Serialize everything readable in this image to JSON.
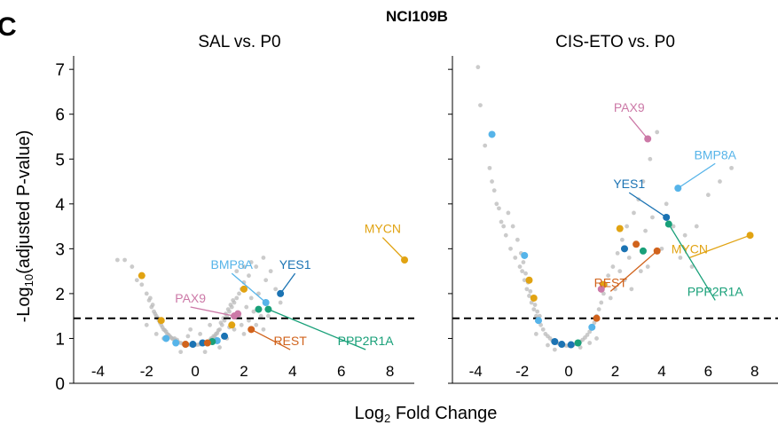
{
  "panel_letter": "C",
  "figure_title": "NCI109B",
  "y_axis_label": {
    "prefix": "-Log",
    "sub": "10",
    "suffix": "(adjusted P-value)"
  },
  "x_axis_label": {
    "prefix": "Log",
    "sub": "2",
    "suffix": " Fold Change"
  },
  "colors": {
    "grey": "#b9b9b9",
    "yellow": "#e1a312",
    "blue": "#1b73b3",
    "lightblue": "#56b4e9",
    "green": "#19a079",
    "orange": "#d1631c",
    "pink": "#cc79a7"
  },
  "chart_data": [
    {
      "type": "scatter",
      "title": "SAL vs. P0",
      "xlim": [
        -5,
        9
      ],
      "ylim": [
        0,
        7.3
      ],
      "x_ticks": [
        -4,
        -2,
        0,
        2,
        4,
        6,
        8
      ],
      "y_ticks": [
        0,
        1,
        2,
        3,
        4,
        5,
        6,
        7
      ],
      "y_tick_labels_shown": true,
      "threshold_y": 1.45,
      "background_points": [
        [
          -3.2,
          2.75
        ],
        [
          -2.9,
          2.75
        ],
        [
          -2.6,
          2.6
        ],
        [
          -2.4,
          2.3
        ],
        [
          -2.2,
          2.2
        ],
        [
          -2.0,
          2.0
        ],
        [
          -1.9,
          1.85
        ],
        [
          -1.8,
          1.7
        ],
        [
          -1.7,
          1.6
        ],
        [
          -1.6,
          1.5
        ],
        [
          -1.5,
          1.4
        ],
        [
          -1.4,
          1.3
        ],
        [
          -1.3,
          1.2
        ],
        [
          -1.2,
          1.15
        ],
        [
          -1.1,
          1.08
        ],
        [
          -1.0,
          1.02
        ],
        [
          -0.9,
          0.98
        ],
        [
          -0.8,
          0.95
        ],
        [
          -0.7,
          0.92
        ],
        [
          -0.6,
          0.9
        ],
        [
          -0.5,
          0.88
        ],
        [
          -0.4,
          0.87
        ],
        [
          -0.3,
          0.86
        ],
        [
          -0.2,
          0.86
        ],
        [
          -0.1,
          0.86
        ],
        [
          0.0,
          0.86
        ],
        [
          0.1,
          0.86
        ],
        [
          0.2,
          0.87
        ],
        [
          0.3,
          0.88
        ],
        [
          0.4,
          0.9
        ],
        [
          0.5,
          0.93
        ],
        [
          0.6,
          0.96
        ],
        [
          0.7,
          1.0
        ],
        [
          0.8,
          1.05
        ],
        [
          0.9,
          1.12
        ],
        [
          1.0,
          1.2
        ],
        [
          1.1,
          1.3
        ],
        [
          1.2,
          1.4
        ],
        [
          1.3,
          1.5
        ],
        [
          1.4,
          1.6
        ],
        [
          1.5,
          1.7
        ],
        [
          1.6,
          1.8
        ],
        [
          1.7,
          1.9
        ],
        [
          1.8,
          2.0
        ],
        [
          1.9,
          2.1
        ],
        [
          2.0,
          2.25
        ],
        [
          2.2,
          2.4
        ],
        [
          2.5,
          2.6
        ],
        [
          2.8,
          2.8
        ],
        [
          -1.85,
          1.9
        ],
        [
          -1.75,
          1.75
        ],
        [
          -1.65,
          1.55
        ],
        [
          -1.55,
          1.45
        ],
        [
          -1.45,
          1.35
        ],
        [
          -1.35,
          1.25
        ],
        [
          -1.25,
          1.18
        ],
        [
          -1.15,
          1.1
        ],
        [
          -1.05,
          1.05
        ],
        [
          -0.95,
          1.0
        ],
        [
          -0.85,
          1.0
        ],
        [
          -0.75,
          0.97
        ],
        [
          1.05,
          1.35
        ],
        [
          1.15,
          1.45
        ],
        [
          1.25,
          1.55
        ],
        [
          1.35,
          1.65
        ],
        [
          1.45,
          1.75
        ],
        [
          1.55,
          1.85
        ],
        [
          0.85,
          1.1
        ],
        [
          0.95,
          1.18
        ],
        [
          0.75,
          1.05
        ],
        [
          0.65,
          1.0
        ],
        [
          2.1,
          1.7
        ],
        [
          2.3,
          1.9
        ],
        [
          2.6,
          2.0
        ],
        [
          2.9,
          2.3
        ],
        [
          3.1,
          2.5
        ],
        [
          2.4,
          1.6
        ],
        [
          2.7,
          1.5
        ],
        [
          1.3,
          1.0
        ],
        [
          1.6,
          1.2
        ],
        [
          1.9,
          1.3
        ],
        [
          2.2,
          1.4
        ],
        [
          2.5,
          1.3
        ],
        [
          2.8,
          1.2
        ],
        [
          3.0,
          1.5
        ],
        [
          -1.3,
          1.0
        ],
        [
          -1.6,
          1.1
        ],
        [
          -2.0,
          1.3
        ],
        [
          -0.6,
          0.7
        ],
        [
          0.4,
          0.7
        ],
        [
          1.0,
          0.8
        ],
        [
          1.8,
          1.5
        ],
        [
          2.0,
          1.1
        ],
        [
          3.3,
          2.1
        ],
        [
          3.5,
          1.8
        ],
        [
          1.7,
          2.5
        ],
        [
          2.0,
          2.6
        ],
        [
          2.3,
          2.7
        ],
        [
          0.2,
          1.1
        ],
        [
          -0.3,
          1.05
        ],
        [
          0.6,
          1.3
        ],
        [
          -0.2,
          1.2
        ],
        [
          1.4,
          1.25
        ]
      ],
      "highlight_points": [
        {
          "x": 8.6,
          "y": 2.75,
          "color": "yellow"
        },
        {
          "x": -2.2,
          "y": 2.4,
          "color": "yellow"
        },
        {
          "x": -1.4,
          "y": 1.4,
          "color": "yellow"
        },
        {
          "x": 2.0,
          "y": 2.1,
          "color": "yellow"
        },
        {
          "x": 1.5,
          "y": 1.3,
          "color": "yellow"
        },
        {
          "x": 3.5,
          "y": 2.0,
          "color": "blue"
        },
        {
          "x": 1.2,
          "y": 1.05,
          "color": "blue"
        },
        {
          "x": 0.3,
          "y": 0.9,
          "color": "blue"
        },
        {
          "x": -0.1,
          "y": 0.87,
          "color": "blue"
        },
        {
          "x": 2.9,
          "y": 1.8,
          "color": "lightblue"
        },
        {
          "x": -0.8,
          "y": 0.9,
          "color": "lightblue"
        },
        {
          "x": -1.2,
          "y": 1.0,
          "color": "lightblue"
        },
        {
          "x": 0.9,
          "y": 0.95,
          "color": "lightblue"
        },
        {
          "x": 2.6,
          "y": 1.65,
          "color": "green"
        },
        {
          "x": 3.0,
          "y": 1.65,
          "color": "green"
        },
        {
          "x": 0.7,
          "y": 0.93,
          "color": "green"
        },
        {
          "x": 2.3,
          "y": 1.2,
          "color": "orange"
        },
        {
          "x": 0.5,
          "y": 0.9,
          "color": "orange"
        },
        {
          "x": -0.4,
          "y": 0.87,
          "color": "orange"
        },
        {
          "x": 1.6,
          "y": 1.5,
          "color": "pink"
        },
        {
          "x": 1.75,
          "y": 1.55,
          "color": "pink"
        }
      ],
      "annotations": [
        {
          "label": "MYCN",
          "color": "yellow",
          "text_at": [
            7.7,
            3.35
          ],
          "point": [
            8.6,
            2.75
          ]
        },
        {
          "label": "BMP8A",
          "color": "lightblue",
          "text_at": [
            1.5,
            2.55
          ],
          "point": [
            2.9,
            1.8
          ]
        },
        {
          "label": "YES1",
          "color": "blue",
          "text_at": [
            4.1,
            2.55
          ],
          "point": [
            3.5,
            2.0
          ]
        },
        {
          "label": "PAX9",
          "color": "pink",
          "text_at": [
            -0.2,
            1.8
          ],
          "point": [
            1.6,
            1.5
          ]
        },
        {
          "label": "REST",
          "color": "orange",
          "text_at": [
            3.9,
            0.85
          ],
          "point": [
            2.3,
            1.2
          ]
        },
        {
          "label": "PPP2R1A",
          "color": "green",
          "text_at": [
            7.0,
            0.85
          ],
          "point": [
            3.0,
            1.65
          ]
        }
      ]
    },
    {
      "type": "scatter",
      "title": "CIS-ETO vs. P0",
      "xlim": [
        -5,
        9
      ],
      "ylim": [
        0,
        7.3
      ],
      "x_ticks": [
        -4,
        -2,
        0,
        2,
        4,
        6,
        8
      ],
      "y_ticks": [
        0,
        1,
        2,
        3,
        4,
        5,
        6,
        7
      ],
      "y_tick_labels_shown": false,
      "threshold_y": 1.45,
      "background_points": [
        [
          -3.9,
          7.05
        ],
        [
          -3.8,
          6.2
        ],
        [
          -3.6,
          5.3
        ],
        [
          -3.3,
          4.5
        ],
        [
          -3.1,
          4.0
        ],
        [
          -2.9,
          3.6
        ],
        [
          -2.7,
          3.3
        ],
        [
          -2.5,
          3.0
        ],
        [
          -2.3,
          2.8
        ],
        [
          -2.1,
          2.6
        ],
        [
          -2.0,
          2.5
        ],
        [
          -1.9,
          2.3
        ],
        [
          -1.8,
          2.1
        ],
        [
          -1.7,
          1.95
        ],
        [
          -1.6,
          1.8
        ],
        [
          -1.5,
          1.65
        ],
        [
          -1.4,
          1.5
        ],
        [
          -1.3,
          1.4
        ],
        [
          -1.2,
          1.3
        ],
        [
          -1.1,
          1.2
        ],
        [
          -1.0,
          1.1
        ],
        [
          -0.9,
          1.05
        ],
        [
          -0.8,
          1.0
        ],
        [
          -0.7,
          0.95
        ],
        [
          -0.6,
          0.92
        ],
        [
          -0.5,
          0.9
        ],
        [
          -0.4,
          0.88
        ],
        [
          -0.3,
          0.86
        ],
        [
          -0.2,
          0.85
        ],
        [
          -0.1,
          0.84
        ],
        [
          0.0,
          0.84
        ],
        [
          0.1,
          0.85
        ],
        [
          0.2,
          0.86
        ],
        [
          0.3,
          0.88
        ],
        [
          0.4,
          0.9
        ],
        [
          0.5,
          0.93
        ],
        [
          0.6,
          0.97
        ],
        [
          0.7,
          1.02
        ],
        [
          0.8,
          1.08
        ],
        [
          0.9,
          1.15
        ],
        [
          1.0,
          1.25
        ],
        [
          1.1,
          1.35
        ],
        [
          1.2,
          1.5
        ],
        [
          1.3,
          1.65
        ],
        [
          1.4,
          1.8
        ],
        [
          1.5,
          2.0
        ],
        [
          1.6,
          2.2
        ],
        [
          1.7,
          2.4
        ],
        [
          -2.6,
          3.8
        ],
        [
          -2.4,
          3.5
        ],
        [
          -2.2,
          3.2
        ],
        [
          -2.05,
          2.9
        ],
        [
          -1.95,
          2.7
        ],
        [
          -1.85,
          2.45
        ],
        [
          -1.75,
          2.25
        ],
        [
          -1.65,
          2.05
        ],
        [
          -1.55,
          1.9
        ],
        [
          -1.45,
          1.75
        ],
        [
          -1.35,
          1.6
        ],
        [
          -1.25,
          1.5
        ],
        [
          -3.4,
          4.8
        ],
        [
          -3.2,
          4.3
        ],
        [
          -3.0,
          3.9
        ],
        [
          -2.8,
          3.5
        ],
        [
          1.9,
          2.6
        ],
        [
          2.1,
          2.9
        ],
        [
          2.3,
          3.2
        ],
        [
          2.5,
          3.5
        ],
        [
          2.8,
          3.8
        ],
        [
          3.0,
          4.1
        ],
        [
          3.2,
          4.5
        ],
        [
          3.5,
          5.0
        ],
        [
          3.8,
          5.6
        ],
        [
          4.2,
          4.0
        ],
        [
          4.5,
          3.5
        ],
        [
          5.0,
          3.3
        ],
        [
          5.5,
          3.5
        ],
        [
          6.0,
          4.2
        ],
        [
          6.5,
          4.5
        ],
        [
          7.0,
          4.8
        ],
        [
          2.2,
          2.5
        ],
        [
          2.6,
          2.8
        ],
        [
          2.9,
          3.1
        ],
        [
          3.3,
          3.4
        ],
        [
          3.6,
          3.7
        ],
        [
          4.0,
          3.0
        ],
        [
          4.8,
          2.8
        ],
        [
          5.3,
          2.6
        ],
        [
          1.8,
          1.9
        ],
        [
          2.0,
          2.1
        ],
        [
          2.4,
          2.3
        ],
        [
          2.7,
          2.1
        ],
        [
          3.1,
          2.5
        ],
        [
          3.4,
          2.6
        ],
        [
          0.5,
          0.8
        ],
        [
          -0.6,
          0.75
        ],
        [
          1.2,
          1.0
        ],
        [
          -1.4,
          1.1
        ],
        [
          0.9,
          0.9
        ],
        [
          -0.9,
          0.85
        ]
      ],
      "highlight_points": [
        {
          "x": 7.8,
          "y": 3.3,
          "color": "yellow"
        },
        {
          "x": 2.2,
          "y": 3.45,
          "color": "yellow"
        },
        {
          "x": 1.5,
          "y": 2.2,
          "color": "yellow"
        },
        {
          "x": -1.7,
          "y": 2.3,
          "color": "yellow"
        },
        {
          "x": -1.5,
          "y": 1.9,
          "color": "yellow"
        },
        {
          "x": 4.2,
          "y": 3.7,
          "color": "blue"
        },
        {
          "x": 2.4,
          "y": 3.0,
          "color": "blue"
        },
        {
          "x": -0.3,
          "y": 0.87,
          "color": "blue"
        },
        {
          "x": 0.1,
          "y": 0.86,
          "color": "blue"
        },
        {
          "x": -0.6,
          "y": 0.93,
          "color": "blue"
        },
        {
          "x": 4.7,
          "y": 4.35,
          "color": "lightblue"
        },
        {
          "x": -3.3,
          "y": 5.55,
          "color": "lightblue"
        },
        {
          "x": -1.9,
          "y": 2.85,
          "color": "lightblue"
        },
        {
          "x": -1.3,
          "y": 1.4,
          "color": "lightblue"
        },
        {
          "x": 1.0,
          "y": 1.25,
          "color": "lightblue"
        },
        {
          "x": 4.3,
          "y": 3.55,
          "color": "green"
        },
        {
          "x": 3.2,
          "y": 2.95,
          "color": "green"
        },
        {
          "x": 0.4,
          "y": 0.9,
          "color": "green"
        },
        {
          "x": 2.9,
          "y": 3.1,
          "color": "orange"
        },
        {
          "x": 3.8,
          "y": 2.95,
          "color": "orange"
        },
        {
          "x": 1.2,
          "y": 1.45,
          "color": "orange"
        },
        {
          "x": 3.4,
          "y": 5.45,
          "color": "pink"
        },
        {
          "x": 1.4,
          "y": 2.1,
          "color": "pink"
        }
      ],
      "annotations": [
        {
          "label": "PAX9",
          "color": "pink",
          "text_at": [
            2.6,
            6.05
          ],
          "point": [
            3.4,
            5.45
          ]
        },
        {
          "label": "BMP8A",
          "color": "lightblue",
          "text_at": [
            6.3,
            5.0
          ],
          "point": [
            4.7,
            4.35
          ]
        },
        {
          "label": "YES1",
          "color": "blue",
          "text_at": [
            2.6,
            4.35
          ],
          "point": [
            4.2,
            3.7
          ]
        },
        {
          "label": "MYCN",
          "color": "yellow",
          "text_at": [
            5.2,
            2.9
          ],
          "point": [
            7.8,
            3.3
          ]
        },
        {
          "label": "REST",
          "color": "orange",
          "text_at": [
            1.8,
            2.15
          ],
          "point": [
            3.8,
            2.95
          ]
        },
        {
          "label": "PPP2R1A",
          "color": "green",
          "text_at": [
            6.3,
            1.95
          ],
          "point": [
            4.3,
            3.55
          ]
        }
      ]
    }
  ]
}
